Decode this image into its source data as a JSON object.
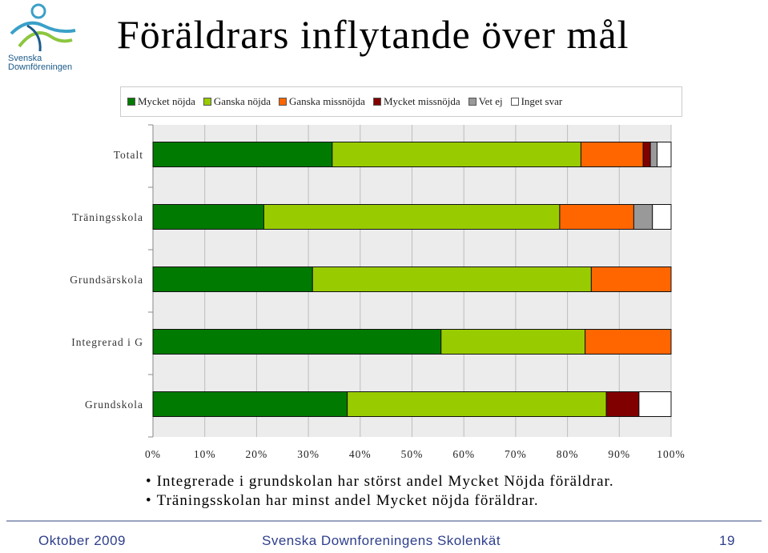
{
  "title": "Föräldrars inflytande över mål",
  "logo": {
    "line1": "Svenska",
    "line2": "Downföreningen"
  },
  "colors": {
    "mycket_nojda": "#007a00",
    "ganska_nojda": "#99cc00",
    "ganska_missnojda": "#ff6600",
    "mycket_missnojda": "#800000",
    "vet_ej": "#999999",
    "inget_svar": "#ffffff",
    "plot_bg": "#ececec",
    "grid": "#bdbdbd"
  },
  "chart_data": {
    "type": "bar",
    "orientation": "horizontal",
    "stacked": true,
    "categories": [
      "Totalt",
      "Träningsskola",
      "Grundsärskola",
      "Integrerad i G",
      "Grundskola"
    ],
    "series": [
      {
        "name": "Mycket nöjda",
        "values": [
          34.6,
          21.4,
          30.8,
          55.6,
          37.5
        ]
      },
      {
        "name": "Ganska nöjda",
        "values": [
          48.0,
          57.1,
          53.8,
          27.8,
          50.0
        ]
      },
      {
        "name": "Ganska missnöjda",
        "values": [
          12.0,
          14.3,
          15.4,
          16.6,
          0
        ]
      },
      {
        "name": "Mycket missnöjda",
        "values": [
          1.4,
          0,
          0,
          0,
          6.3
        ]
      },
      {
        "name": "Vet ej",
        "values": [
          1.3,
          3.6,
          0,
          0,
          0
        ]
      },
      {
        "name": "Inget svar",
        "values": [
          2.7,
          3.6,
          0,
          0,
          6.2
        ]
      }
    ],
    "xticks": [
      "0%",
      "10%",
      "20%",
      "30%",
      "40%",
      "50%",
      "60%",
      "70%",
      "80%",
      "90%",
      "100%"
    ],
    "xlim": [
      0,
      100
    ],
    "grid": true,
    "legend_position": "top"
  },
  "bullets": [
    "Integrerade i grundskolan har störst andel Mycket Nöjda föräldrar.",
    "Träningsskolan har minst andel Mycket nöjda föräldrar."
  ],
  "footer": {
    "left": "Oktober 2009",
    "center": "Svenska Downforeningens Skolenkät",
    "right": "19"
  }
}
